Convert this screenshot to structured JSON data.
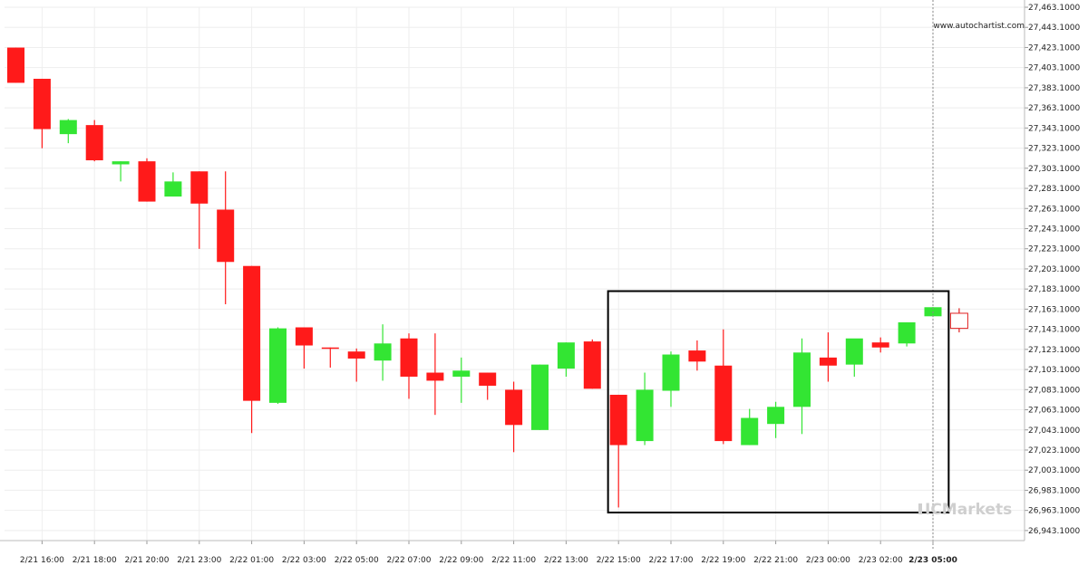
{
  "chart_data": {
    "type": "candlestick",
    "watermark_url": "www.autochartist.com",
    "brand": "ICMarkets",
    "colors": {
      "bull": "#33e533",
      "bear": "#ff1a1a",
      "grid": "#eeeeee",
      "pattern_box": "#000000",
      "forecast_candle": "#e02020"
    },
    "ylim": [
      26933.1,
      27463.1
    ],
    "y_ticks": [
      "27,463.1000",
      "27,443.1000",
      "27,423.1000",
      "27,403.1000",
      "27,383.1000",
      "27,363.1000",
      "27,343.1000",
      "27,323.1000",
      "27,303.1000",
      "27,283.1000",
      "27,263.1000",
      "27,243.1000",
      "27,223.1000",
      "27,203.1000",
      "27,183.1000",
      "27,163.1000",
      "27,143.1000",
      "27,123.1000",
      "27,103.1000",
      "27,083.1000",
      "27,063.1000",
      "27,043.1000",
      "27,023.1000",
      "27,003.1000",
      "26,983.1000",
      "26,963.1000",
      "26,943.1000"
    ],
    "y_tick_values": [
      27463.1,
      27443.1,
      27423.1,
      27403.1,
      27383.1,
      27363.1,
      27343.1,
      27323.1,
      27303.1,
      27283.1,
      27263.1,
      27243.1,
      27223.1,
      27203.1,
      27183.1,
      27163.1,
      27143.1,
      27123.1,
      27103.1,
      27083.1,
      27063.1,
      27043.1,
      27023.1,
      27003.1,
      26983.1,
      26963.1,
      26943.1
    ],
    "x_ticks": [
      "2/21 16:00",
      "2/21 18:00",
      "2/21 20:00",
      "2/21 23:00",
      "2/22 01:00",
      "2/22 03:00",
      "2/22 05:00",
      "2/22 07:00",
      "2/22 09:00",
      "2/22 11:00",
      "2/22 13:00",
      "2/22 15:00",
      "2/22 17:00",
      "2/22 19:00",
      "2/22 21:00",
      "2/23 00:00",
      "2/23 02:00",
      "2/23 05:00"
    ],
    "x_tick_candle_index": [
      1,
      3,
      5,
      7,
      9,
      11,
      13,
      15,
      17,
      19,
      21,
      23,
      25,
      27,
      29,
      31,
      33,
      35
    ],
    "candles": [
      {
        "o": 27423,
        "h": 27423,
        "l": 27388,
        "c": 27388
      },
      {
        "o": 27392,
        "h": 27392,
        "l": 27323,
        "c": 27342
      },
      {
        "o": 27337,
        "h": 27352,
        "l": 27328,
        "c": 27351
      },
      {
        "o": 27346,
        "h": 27351,
        "l": 27310,
        "c": 27311
      },
      {
        "o": 27307,
        "h": 27310,
        "l": 27290,
        "c": 27310
      },
      {
        "o": 27310,
        "h": 27313,
        "l": 27270,
        "c": 27270
      },
      {
        "o": 27275,
        "h": 27299,
        "l": 27275,
        "c": 27290
      },
      {
        "o": 27300,
        "h": 27300,
        "l": 27223,
        "c": 27268
      },
      {
        "o": 27262,
        "h": 27300,
        "l": 27168,
        "c": 27210
      },
      {
        "o": 27206,
        "h": 27206,
        "l": 27040,
        "c": 27072
      },
      {
        "o": 27070,
        "h": 27145,
        "l": 27069,
        "c": 27144
      },
      {
        "o": 27145,
        "h": 27145,
        "l": 27104,
        "c": 27127
      },
      {
        "o": 27125,
        "h": 27125,
        "l": 27105,
        "c": 27124
      },
      {
        "o": 27121,
        "h": 27124,
        "l": 27091,
        "c": 27114
      },
      {
        "o": 27112,
        "h": 27148,
        "l": 27092,
        "c": 27129
      },
      {
        "o": 27134,
        "h": 27139,
        "l": 27074,
        "c": 27096
      },
      {
        "o": 27100,
        "h": 27139,
        "l": 27058,
        "c": 27092
      },
      {
        "o": 27096,
        "h": 27115,
        "l": 27070,
        "c": 27102
      },
      {
        "o": 27100,
        "h": 27100,
        "l": 27073,
        "c": 27087
      },
      {
        "o": 27083,
        "h": 27091,
        "l": 27021,
        "c": 27048
      },
      {
        "o": 27043,
        "h": 27108,
        "l": 27043,
        "c": 27108
      },
      {
        "o": 27104,
        "h": 27130,
        "l": 27096,
        "c": 27130
      },
      {
        "o": 27131,
        "h": 27133,
        "l": 27084,
        "c": 27084
      },
      {
        "o": 27078,
        "h": 27078,
        "l": 26966,
        "c": 27028
      },
      {
        "o": 27032,
        "h": 27100,
        "l": 27028,
        "c": 27083
      },
      {
        "o": 27082,
        "h": 27121,
        "l": 27066,
        "c": 27118
      },
      {
        "o": 27122,
        "h": 27132,
        "l": 27102,
        "c": 27111
      },
      {
        "o": 27107,
        "h": 27143,
        "l": 27029,
        "c": 27032
      },
      {
        "o": 27028,
        "h": 27064,
        "l": 27028,
        "c": 27055
      },
      {
        "o": 27049,
        "h": 27071,
        "l": 27035,
        "c": 27066
      },
      {
        "o": 27066,
        "h": 27134,
        "l": 27039,
        "c": 27120
      },
      {
        "o": 27115,
        "h": 27140,
        "l": 27091,
        "c": 27107
      },
      {
        "o": 27108,
        "h": 27133,
        "l": 27096,
        "c": 27134
      },
      {
        "o": 27130,
        "h": 27135,
        "l": 27120,
        "c": 27125
      },
      {
        "o": 27129,
        "h": 27150,
        "l": 27126,
        "c": 27150
      },
      {
        "o": 27156,
        "h": 27165,
        "l": 27156,
        "c": 27165
      }
    ],
    "forecast_candle": {
      "o": 27159,
      "h": 27164,
      "l": 27140,
      "c": 27144
    },
    "pattern_box": {
      "from_candle": 22.6,
      "to_candle": 35.6,
      "top": 27181,
      "bottom": 26961
    },
    "current_time_candle_index": 35
  }
}
